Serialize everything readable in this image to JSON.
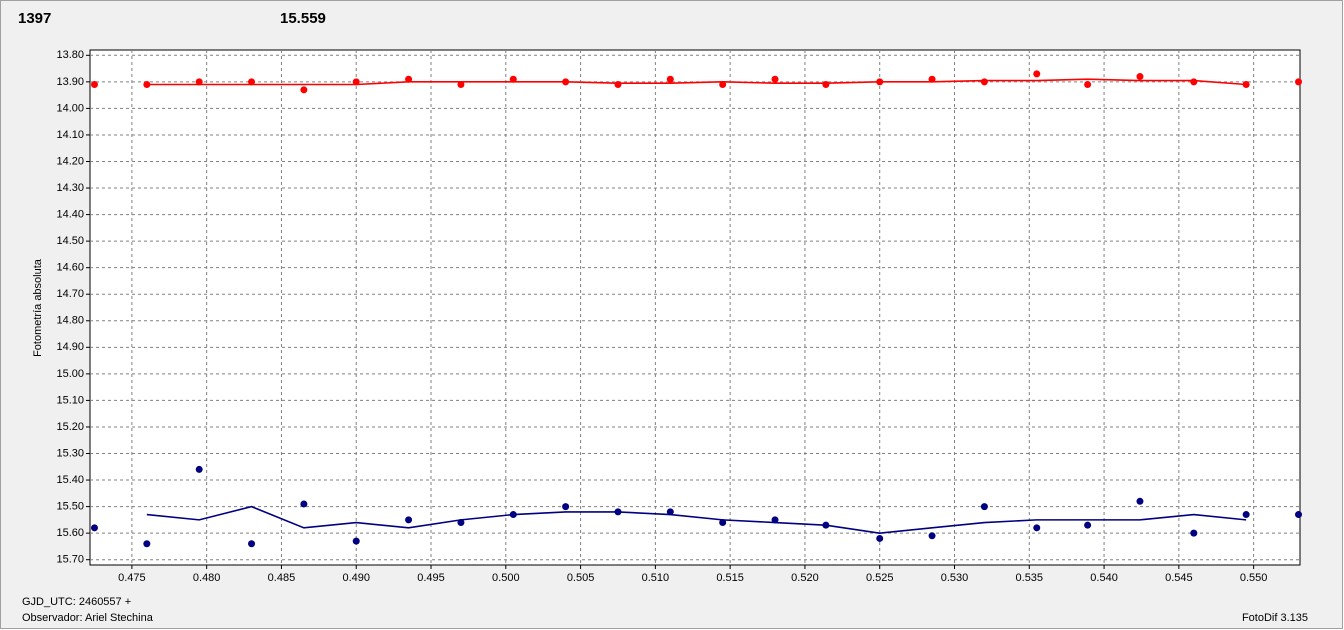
{
  "chart_data": {
    "type": "scatter",
    "header_values": [
      {
        "text": "1397",
        "color": "#ff0000"
      },
      {
        "text": "15.559",
        "color": "#000080"
      }
    ],
    "y_label": "Fotometría absoluta",
    "footer_left": [
      "GJD_UTC: 2460557 +",
      "Observador: Ariel Stechina"
    ],
    "footer_right": "FotoDif 3.135",
    "xlim": [
      0.4722,
      0.5531
    ],
    "ylim": [
      13.78,
      15.72
    ],
    "y_inverted": true,
    "grid": true,
    "xticks": [
      {
        "value": 0.475,
        "label": "0.475"
      },
      {
        "value": 0.48,
        "label": "0.480"
      },
      {
        "value": 0.485,
        "label": "0.485"
      },
      {
        "value": 0.49,
        "label": "0.490"
      },
      {
        "value": 0.495,
        "label": "0.495"
      },
      {
        "value": 0.5,
        "label": "0.500"
      },
      {
        "value": 0.505,
        "label": "0.505"
      },
      {
        "value": 0.51,
        "label": "0.510"
      },
      {
        "value": 0.515,
        "label": "0.515"
      },
      {
        "value": 0.52,
        "label": "0.520"
      },
      {
        "value": 0.525,
        "label": "0.525"
      },
      {
        "value": 0.53,
        "label": "0.530"
      },
      {
        "value": 0.535,
        "label": "0.535"
      },
      {
        "value": 0.54,
        "label": "0.540"
      },
      {
        "value": 0.545,
        "label": "0.545"
      },
      {
        "value": 0.55,
        "label": "0.550"
      }
    ],
    "yticks": [
      {
        "value": 13.8,
        "label": "13.80"
      },
      {
        "value": 13.9,
        "label": "13.90"
      },
      {
        "value": 14.0,
        "label": "14.00"
      },
      {
        "value": 14.1,
        "label": "14.10"
      },
      {
        "value": 14.2,
        "label": "14.20"
      },
      {
        "value": 14.3,
        "label": "14.30"
      },
      {
        "value": 14.4,
        "label": "14.40"
      },
      {
        "value": 14.5,
        "label": "14.50"
      },
      {
        "value": 14.6,
        "label": "14.60"
      },
      {
        "value": 14.7,
        "label": "14.70"
      },
      {
        "value": 14.8,
        "label": "14.80"
      },
      {
        "value": 14.9,
        "label": "14.90"
      },
      {
        "value": 15.0,
        "label": "15.00"
      },
      {
        "value": 15.1,
        "label": "15.10"
      },
      {
        "value": 15.2,
        "label": "15.20"
      },
      {
        "value": 15.3,
        "label": "15.30"
      },
      {
        "value": 15.4,
        "label": "15.40"
      },
      {
        "value": 15.5,
        "label": "15.50"
      },
      {
        "value": 15.6,
        "label": "15.60"
      },
      {
        "value": 15.7,
        "label": "15.70"
      }
    ],
    "x": [
      0.4725,
      0.476,
      0.4795,
      0.483,
      0.4865,
      0.49,
      0.4935,
      0.497,
      0.5005,
      0.504,
      0.5075,
      0.511,
      0.5145,
      0.518,
      0.5214,
      0.525,
      0.5285,
      0.532,
      0.5355,
      0.5389,
      0.5424,
      0.546,
      0.5495,
      0.553
    ],
    "series": [
      {
        "mode": "markers",
        "color": "#ff0000",
        "values": [
          13.91,
          13.91,
          13.9,
          13.9,
          13.93,
          13.9,
          13.89,
          13.91,
          13.89,
          13.9,
          13.91,
          13.89,
          13.91,
          13.89,
          13.91,
          13.9,
          13.89,
          13.9,
          13.87,
          13.91,
          13.88,
          13.9,
          13.91,
          13.9
        ]
      },
      {
        "mode": "line",
        "color": "#ff0000",
        "values": [
          null,
          13.91,
          13.91,
          13.91,
          13.91,
          13.91,
          13.9,
          13.9,
          13.9,
          13.9,
          13.905,
          13.905,
          13.9,
          13.905,
          13.905,
          13.9,
          13.9,
          13.895,
          13.895,
          13.89,
          13.895,
          13.895,
          13.91,
          null
        ]
      },
      {
        "mode": "markers",
        "color": "#000080",
        "values": [
          15.58,
          15.64,
          15.36,
          15.64,
          15.49,
          15.63,
          15.55,
          15.56,
          15.53,
          15.5,
          15.52,
          15.52,
          15.56,
          15.55,
          15.57,
          15.62,
          15.61,
          15.5,
          15.58,
          15.57,
          15.48,
          15.6,
          15.53,
          15.53
        ]
      },
      {
        "mode": "line",
        "color": "#000080",
        "values": [
          null,
          15.53,
          15.55,
          15.5,
          15.58,
          15.56,
          15.58,
          15.55,
          15.53,
          15.52,
          15.52,
          15.53,
          15.55,
          15.56,
          15.57,
          15.6,
          15.58,
          15.56,
          15.55,
          15.55,
          15.55,
          15.53,
          15.55,
          null
        ]
      }
    ]
  }
}
